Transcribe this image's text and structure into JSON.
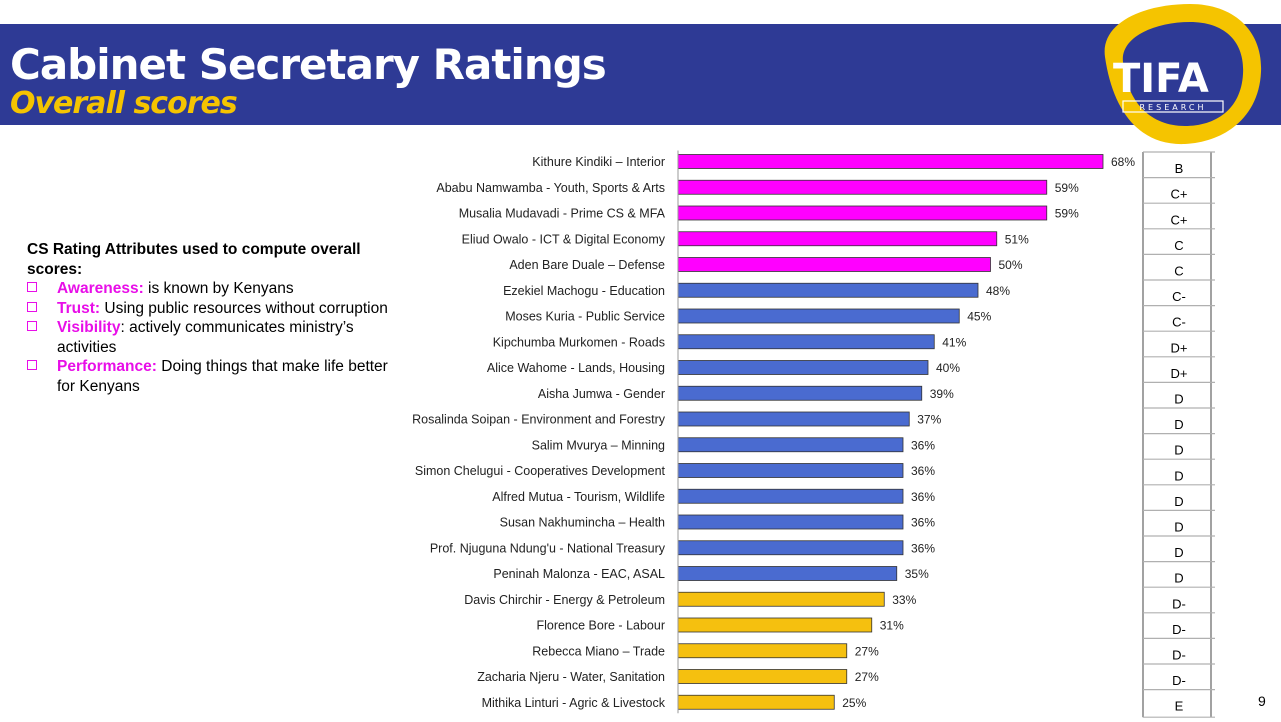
{
  "header": {
    "title": "Cabinet Secretary Ratings",
    "subtitle": "Overall scores",
    "logo_text": "TIFA",
    "logo_subtext": "RESEARCH"
  },
  "attributes": {
    "heading": "CS Rating Attributes used to compute overall scores:",
    "items": [
      {
        "term": "Awareness:",
        "desc": " is known by Kenyans"
      },
      {
        "term": "Trust:",
        "desc": " Using public resources without corruption"
      },
      {
        "term": "Visibility",
        "desc": ": actively communicates ministry’s activities"
      },
      {
        "term": "Performance:",
        "desc": " Doing things that make life better for Kenyans"
      }
    ]
  },
  "page_number": "9",
  "colors": {
    "magenta": "#ff00ff",
    "blue": "#4a6bd0",
    "gold": "#f5c00f",
    "header": "#2e3a95",
    "accent_text": "#e80ee8"
  },
  "chart_data": {
    "type": "bar",
    "orientation": "horizontal",
    "xlim": [
      0,
      100
    ],
    "unit": "%",
    "rows": [
      {
        "label": "Kithure Kindiki – Interior",
        "value": 68,
        "grade": "B",
        "color": "magenta"
      },
      {
        "label": "Ababu Namwamba - Youth, Sports & Arts",
        "value": 59,
        "grade": "C+",
        "color": "magenta"
      },
      {
        "label": "Musalia Mudavadi - Prime CS & MFA",
        "value": 59,
        "grade": "C+",
        "color": "magenta"
      },
      {
        "label": "Eliud Owalo - ICT & Digital Economy",
        "value": 51,
        "grade": "C",
        "color": "magenta"
      },
      {
        "label": "Aden Bare Duale – Defense",
        "value": 50,
        "grade": "C",
        "color": "magenta"
      },
      {
        "label": "Ezekiel Machogu - Education",
        "value": 48,
        "grade": "C-",
        "color": "blue"
      },
      {
        "label": "Moses Kuria - Public Service",
        "value": 45,
        "grade": "C-",
        "color": "blue"
      },
      {
        "label": "Kipchumba Murkomen - Roads",
        "value": 41,
        "grade": "D+",
        "color": "blue"
      },
      {
        "label": "Alice Wahome - Lands, Housing",
        "value": 40,
        "grade": "D+",
        "color": "blue"
      },
      {
        "label": "Aisha Jumwa - Gender",
        "value": 39,
        "grade": "D",
        "color": "blue"
      },
      {
        "label": "Rosalinda Soipan - Environment and Forestry",
        "value": 37,
        "grade": "D",
        "color": "blue"
      },
      {
        "label": "Salim Mvurya – Minning",
        "value": 36,
        "grade": "D",
        "color": "blue"
      },
      {
        "label": "Simon Chelugui - Cooperatives Development",
        "value": 36,
        "grade": "D",
        "color": "blue"
      },
      {
        "label": "Alfred Mutua - Tourism, Wildlife",
        "value": 36,
        "grade": "D",
        "color": "blue"
      },
      {
        "label": "Susan Nakhumincha – Health",
        "value": 36,
        "grade": "D",
        "color": "blue"
      },
      {
        "label": "Prof. Njuguna Ndung'u - National Treasury",
        "value": 36,
        "grade": "D",
        "color": "blue"
      },
      {
        "label": "Peninah Malonza - EAC, ASAL",
        "value": 35,
        "grade": "D",
        "color": "blue"
      },
      {
        "label": "Davis Chirchir - Energy & Petroleum",
        "value": 33,
        "grade": "D-",
        "color": "gold"
      },
      {
        "label": "Florence Bore - Labour",
        "value": 31,
        "grade": "D-",
        "color": "gold"
      },
      {
        "label": "Rebecca Miano – Trade",
        "value": 27,
        "grade": "D-",
        "color": "gold"
      },
      {
        "label": "Zacharia Njeru - Water, Sanitation",
        "value": 27,
        "grade": "D-",
        "color": "gold"
      },
      {
        "label": "Mithika Linturi - Agric & Livestock",
        "value": 25,
        "grade": "E",
        "color": "gold"
      }
    ]
  }
}
